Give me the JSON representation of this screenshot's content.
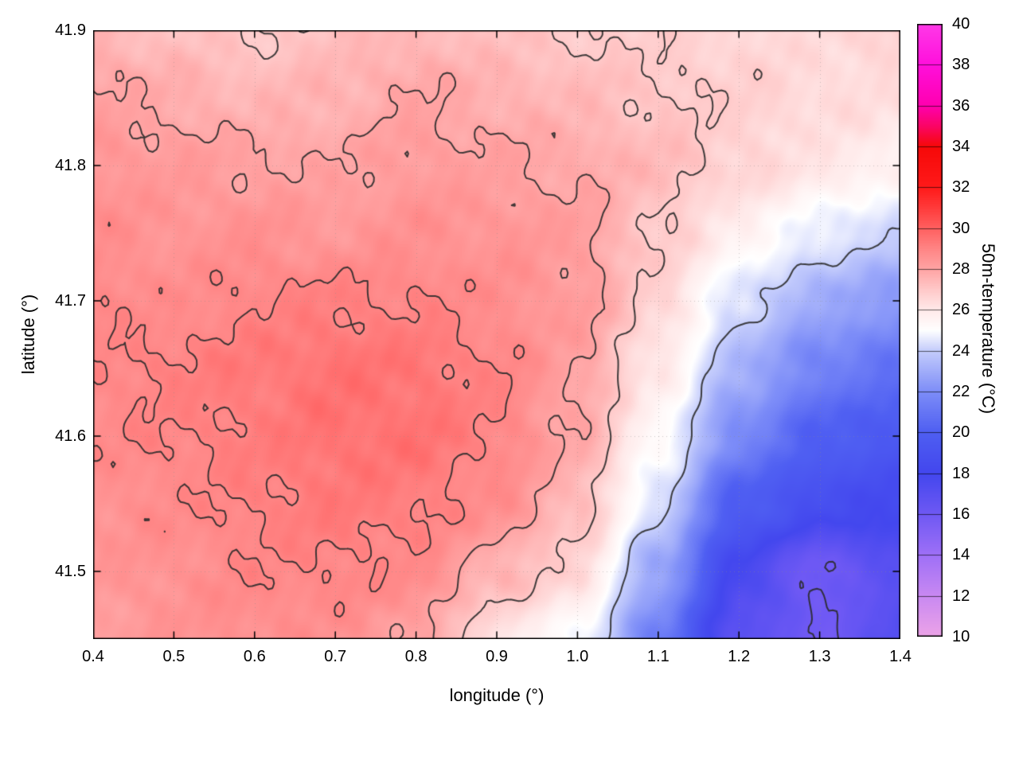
{
  "chart_data": {
    "type": "heatmap",
    "title": "",
    "xlabel": "longitude (°)",
    "ylabel": "latitude (°)",
    "colorbar_label": "50m-temperature (°C)",
    "x_range": [
      0.4,
      1.4
    ],
    "y_range": [
      41.45,
      41.9
    ],
    "z_range": [
      10,
      40
    ],
    "grid_on": true,
    "legend_position": "none",
    "x_ticks": {
      "values": [
        0.4,
        0.5,
        0.6,
        0.7,
        0.8,
        0.9,
        1.0,
        1.1,
        1.2,
        1.3,
        1.4
      ],
      "labels": [
        "0.4",
        "0.5",
        "0.6",
        "0.7",
        "0.8",
        "0.9",
        "1.0",
        "1.1",
        "1.2",
        "1.3",
        "1.4"
      ]
    },
    "y_ticks": {
      "values": [
        41.5,
        41.6,
        41.7,
        41.8,
        41.9
      ],
      "labels": [
        "41.5",
        "41.6",
        "41.7",
        "41.8",
        "41.9"
      ]
    },
    "colorbar_ticks": {
      "values": [
        10,
        12,
        14,
        16,
        18,
        20,
        22,
        24,
        26,
        28,
        30,
        32,
        34,
        36,
        38,
        40
      ],
      "labels": [
        "10",
        "12",
        "14",
        "16",
        "18",
        "20",
        "22",
        "24",
        "26",
        "28",
        "30",
        "32",
        "34",
        "36",
        "38",
        "40"
      ]
    },
    "palette": [
      [
        10,
        "#eda4e8"
      ],
      [
        12,
        "#c989f2"
      ],
      [
        14,
        "#9f70f7"
      ],
      [
        16,
        "#6f59f4"
      ],
      [
        18,
        "#4347ee"
      ],
      [
        20,
        "#4f5ff2"
      ],
      [
        22,
        "#7e8ef8"
      ],
      [
        24,
        "#c5cdfc"
      ],
      [
        25,
        "#ffffff"
      ],
      [
        26,
        "#ffeaea"
      ],
      [
        27,
        "#ffc9c9"
      ],
      [
        28,
        "#ffa4a4"
      ],
      [
        29,
        "#ff8585"
      ],
      [
        30,
        "#ff6060"
      ],
      [
        31,
        "#ff3b3b"
      ],
      [
        32,
        "#ff1a1a"
      ],
      [
        34,
        "#f70909"
      ],
      [
        35,
        "#fb0566"
      ],
      [
        36,
        "#ff00b0"
      ],
      [
        38,
        "#ff10dc"
      ],
      [
        40,
        "#ff3ae8"
      ]
    ],
    "contour_levels": [
      16,
      24,
      27,
      28,
      29
    ],
    "field": {
      "lon": [
        0.4,
        0.5,
        0.6,
        0.7,
        0.8,
        0.9,
        1.0,
        1.1,
        1.2,
        1.3,
        1.4
      ],
      "lat": [
        41.9,
        41.85,
        41.8,
        41.75,
        41.7,
        41.65,
        41.6,
        41.55,
        41.5,
        41.45
      ],
      "values_c": [
        [
          27.6,
          27.2,
          27.0,
          27.3,
          27.5,
          27.2,
          27.0,
          26.8,
          26.6,
          26.4,
          26.9
        ],
        [
          28.1,
          27.8,
          27.5,
          27.6,
          28.0,
          27.7,
          27.4,
          27.1,
          26.8,
          26.5,
          26.3
        ],
        [
          28.5,
          28.3,
          28.1,
          28.0,
          28.3,
          28.1,
          27.9,
          27.4,
          26.7,
          26.1,
          25.7
        ],
        [
          28.7,
          28.5,
          28.6,
          28.4,
          28.6,
          28.5,
          28.2,
          27.0,
          25.7,
          24.6,
          24.0
        ],
        [
          28.9,
          28.7,
          29.0,
          29.1,
          29.0,
          28.7,
          28.3,
          26.7,
          24.3,
          23.0,
          22.3
        ],
        [
          28.9,
          29.1,
          29.3,
          29.5,
          29.4,
          29.0,
          28.1,
          26.0,
          23.2,
          21.5,
          20.8
        ],
        [
          28.8,
          29.0,
          29.2,
          29.5,
          29.5,
          29.0,
          27.9,
          25.3,
          21.8,
          20.0,
          19.4
        ],
        [
          28.6,
          28.8,
          29.1,
          29.3,
          29.2,
          28.7,
          27.4,
          24.3,
          19.8,
          18.6,
          18.2
        ],
        [
          28.4,
          28.6,
          28.9,
          29.0,
          28.8,
          27.6,
          26.6,
          22.8,
          17.8,
          15.9,
          17.0
        ],
        [
          28.2,
          28.5,
          28.7,
          28.6,
          28.1,
          26.2,
          25.0,
          21.3,
          16.8,
          16.0,
          17.2
        ]
      ]
    },
    "style": {
      "contour_color": "#2b2b2b",
      "grid_color": "rgba(140,140,140,0.45)",
      "border_color": "#000000",
      "background": "#ffffff"
    }
  }
}
